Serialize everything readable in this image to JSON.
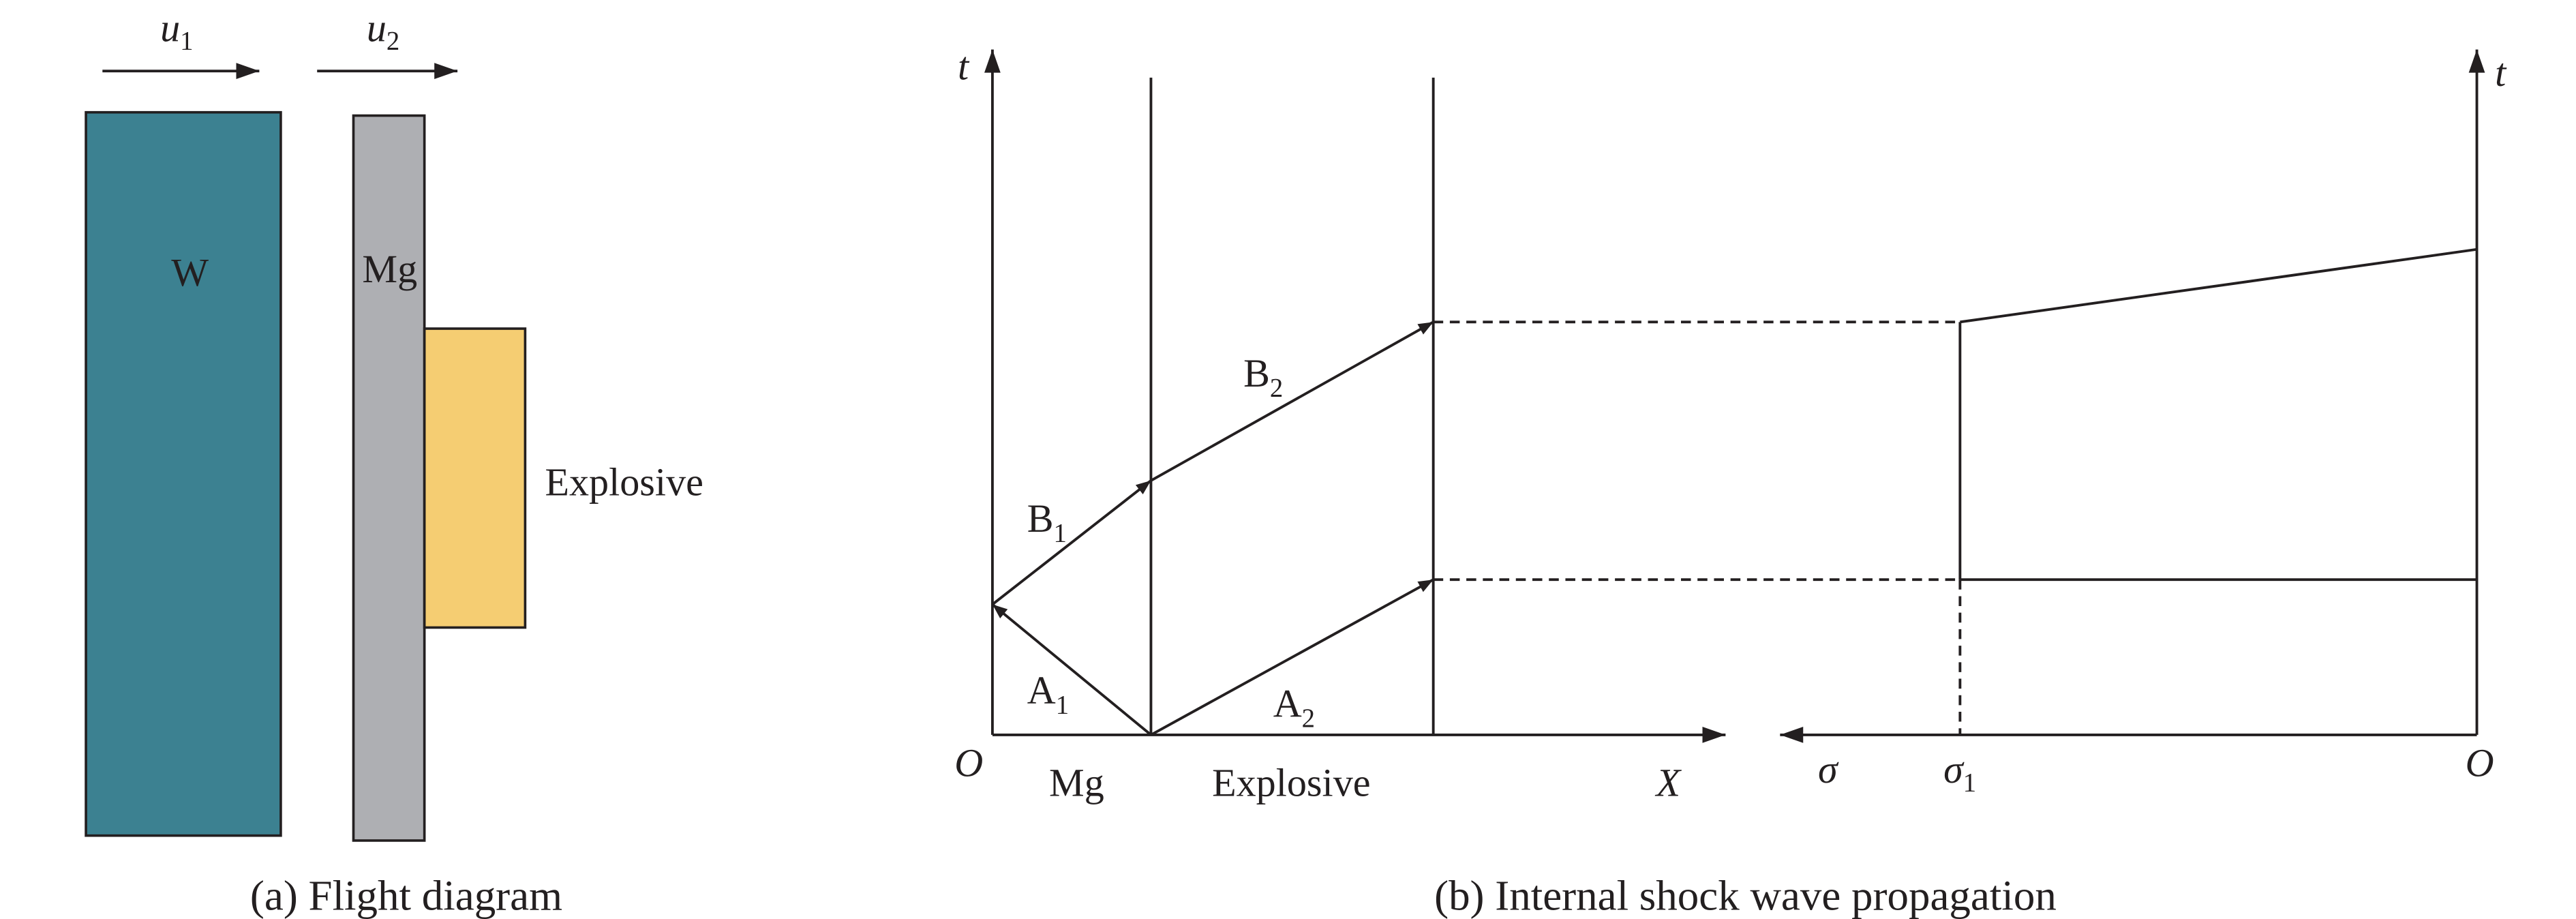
{
  "panel_a": {
    "velocity_labels": [
      {
        "symbol": "u",
        "subscript": "1"
      },
      {
        "symbol": "u",
        "subscript": "2"
      }
    ],
    "blocks": {
      "w": "W",
      "mg": "Mg",
      "explosive": "Explosive"
    },
    "caption": "(a) Flight diagram"
  },
  "panel_b": {
    "axis_labels": {
      "t_left": "t",
      "t_right": "t",
      "origin_left": "O",
      "origin_right": "O",
      "x": "X",
      "sigma": "σ",
      "sigma1": {
        "symbol": "σ",
        "subscript": "1"
      }
    },
    "region_labels": {
      "mg": "Mg",
      "explosive": "Explosive"
    },
    "waves": [
      {
        "symbol": "A",
        "subscript": "1"
      },
      {
        "symbol": "A",
        "subscript": "2"
      },
      {
        "symbol": "B",
        "subscript": "1"
      },
      {
        "symbol": "B",
        "subscript": "2"
      }
    ],
    "caption": "(b) Internal shock wave propagation"
  }
}
